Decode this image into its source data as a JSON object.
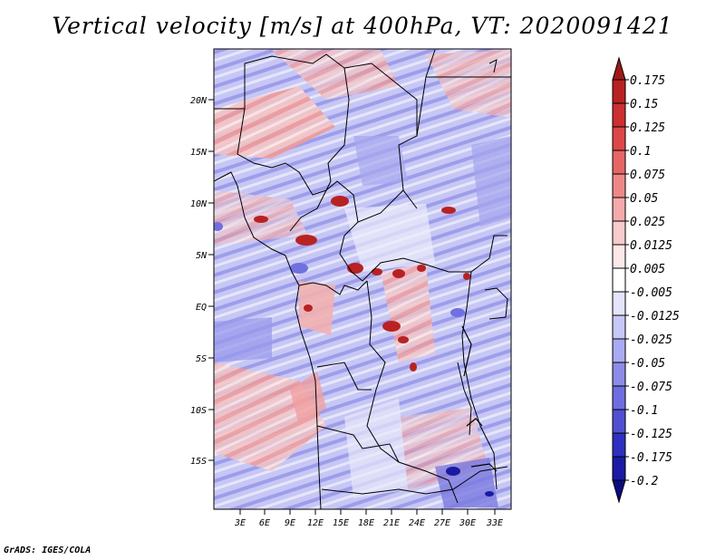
{
  "title": "Vertical velocity [m/s] at 400hPa, VT: 2020091421",
  "credit": "GrADS: IGES/COLA",
  "map": {
    "lat_labels": [
      "20N",
      "15N",
      "10N",
      "5N",
      "EQ",
      "5S",
      "10S",
      "15S"
    ],
    "lon_labels": [
      "3E",
      "6E",
      "9E",
      "12E",
      "15E",
      "18E",
      "21E",
      "24E",
      "27E",
      "30E",
      "33E"
    ],
    "lat_range": [
      -20,
      24.5
    ],
    "lon_range": [
      0,
      35
    ]
  },
  "colorbar": {
    "labels": [
      "0.175",
      "0.15",
      "0.125",
      "0.1",
      "0.075",
      "0.05",
      "0.025",
      "0.0125",
      "0.005",
      "-0.005",
      "-0.0125",
      "-0.025",
      "-0.05",
      "-0.075",
      "-0.1",
      "-0.125",
      "-0.175",
      "-0.2"
    ],
    "colors": [
      "#a01818",
      "#b82222",
      "#cc3030",
      "#dc4848",
      "#e66666",
      "#ee8888",
      "#f4aaaa",
      "#f8cccc",
      "#fce8e8",
      "#ffffff",
      "#e4e4fc",
      "#c8c8f8",
      "#aaaaf2",
      "#8c8ce8",
      "#6e6ee0",
      "#5050d2",
      "#3030c0",
      "#1a1aa4",
      "#0c0c80"
    ]
  }
}
